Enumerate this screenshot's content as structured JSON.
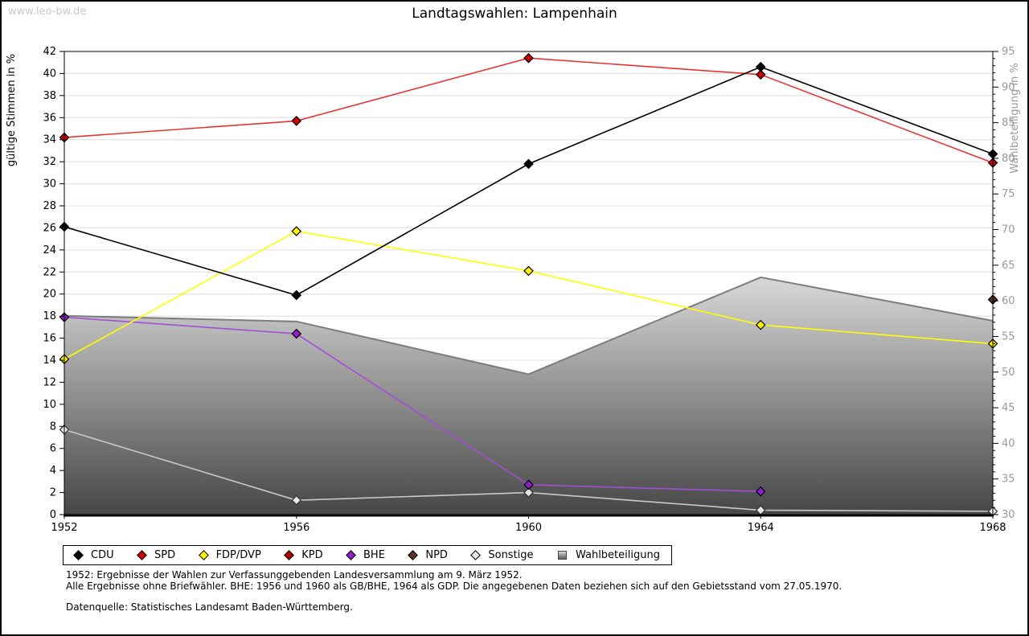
{
  "watermark": "www.leo-bw.de",
  "title": "Landtagswahlen: Lampenhain",
  "chart_data": {
    "type": "line",
    "title": "Landtagswahlen: Lampenhain",
    "x": [
      1952,
      1956,
      1960,
      1964,
      1968
    ],
    "y_left": {
      "label": "gültige Stimmen in %",
      "min": 0,
      "max": 42,
      "tick_step": 2
    },
    "y_right": {
      "label": "Wahlbeteiligung in %",
      "min": 30,
      "max": 95,
      "tick_step": 5,
      "minor_step": 1
    },
    "grid": true,
    "legend_position": "bottom",
    "series": [
      {
        "name": "CDU",
        "axis": "left",
        "type": "line",
        "line": "#000000",
        "fill": "#000000",
        "values": [
          26.1,
          19.9,
          31.8,
          40.6,
          32.7
        ]
      },
      {
        "name": "SPD",
        "axis": "left",
        "type": "line",
        "line": "#e83333",
        "fill": "#cc0000",
        "values": [
          34.2,
          35.7,
          41.4,
          39.9,
          31.9
        ]
      },
      {
        "name": "FDP/DVP",
        "axis": "left",
        "type": "line",
        "line": "#ffff00",
        "fill": "#fff200",
        "values": [
          14.1,
          25.7,
          22.1,
          17.2,
          15.5
        ]
      },
      {
        "name": "KPD",
        "axis": "left",
        "type": "line",
        "line": "#aa0000",
        "fill": "#aa0000",
        "values": [
          null,
          null,
          null,
          null,
          null
        ]
      },
      {
        "name": "BHE",
        "axis": "left",
        "type": "line",
        "line": "#a04fd6",
        "fill": "#8d20c8",
        "values": [
          17.9,
          16.4,
          2.7,
          2.1,
          null
        ]
      },
      {
        "name": "NPD",
        "axis": "left",
        "type": "line",
        "line": "#5a332b",
        "fill": "#5a332b",
        "values": [
          null,
          null,
          null,
          null,
          19.5
        ]
      },
      {
        "name": "Sonstige",
        "axis": "left",
        "type": "line",
        "line": "#c9c9c9",
        "fill": "#e6e6e6",
        "stroke": "#333333",
        "values": [
          7.7,
          1.3,
          2.0,
          0.4,
          0.3
        ]
      },
      {
        "name": "Wahlbeteiligung",
        "axis": "right",
        "type": "area",
        "line": "#7d7d7d",
        "fill_top": "#d8d8d8",
        "fill_bottom": "#464646",
        "values": [
          57.9,
          57.1,
          49.7,
          63.3,
          57.2
        ]
      }
    ]
  },
  "legend": {
    "items": [
      {
        "label": "CDU",
        "color": "#000000",
        "shape": "diamond"
      },
      {
        "label": "SPD",
        "color": "#cc0000",
        "shape": "diamond"
      },
      {
        "label": "FDP/DVP",
        "color": "#fff200",
        "shape": "diamond"
      },
      {
        "label": "KPD",
        "color": "#aa0000",
        "shape": "diamond"
      },
      {
        "label": "BHE",
        "color": "#8d20c8",
        "shape": "diamond"
      },
      {
        "label": "NPD",
        "color": "#5a332b",
        "shape": "diamond"
      },
      {
        "label": "Sonstige",
        "color": "#e6e6e6",
        "shape": "diamond"
      },
      {
        "label": "Wahlbeteiligung",
        "color": "gray-gradient",
        "shape": "square"
      }
    ]
  },
  "footer": {
    "line1": "1952: Ergebnisse der Wahlen zur Verfassunggebenden Landesversammlung am 9. März 1952.",
    "line2": "Alle Ergebnisse ohne Briefwähler. BHE: 1956 und 1960 als GB/BHE, 1964 als GDP. Die angegebenen Daten beziehen sich auf den Gebietsstand vom 27.05.1970.",
    "source": "Datenquelle: Statistisches Landesamt Baden-Württemberg."
  },
  "colors": {
    "gridline": "#dcdcdc",
    "right_axis_text": "#999999",
    "axis": "#000000"
  }
}
